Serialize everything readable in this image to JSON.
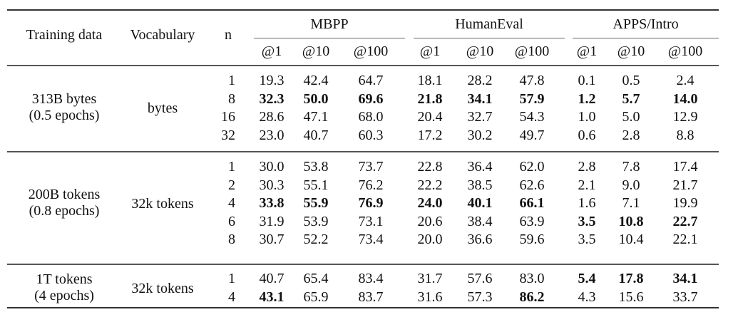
{
  "table": {
    "header": {
      "training_data": "Training data",
      "vocabulary": "Vocabulary",
      "n": "n",
      "benchmarks": [
        "MBPP",
        "HumanEval",
        "APPS/Intro"
      ],
      "metrics": [
        "@1",
        "@10",
        "@100",
        "@1",
        "@10",
        "@100",
        "@1",
        "@10",
        "@100"
      ]
    },
    "groups": [
      {
        "training_data_line1": "313B bytes",
        "training_data_line2": "(0.5 epochs)",
        "vocabulary": "bytes",
        "rows": [
          {
            "n": "1",
            "values": [
              "19.3",
              "42.4",
              "64.7",
              "18.1",
              "28.2",
              "47.8",
              "0.1",
              "0.5",
              "2.4"
            ],
            "bold": [
              false,
              false,
              false,
              false,
              false,
              false,
              false,
              false,
              false
            ]
          },
          {
            "n": "8",
            "values": [
              "32.3",
              "50.0",
              "69.6",
              "21.8",
              "34.1",
              "57.9",
              "1.2",
              "5.7",
              "14.0"
            ],
            "bold": [
              true,
              true,
              true,
              true,
              true,
              true,
              true,
              true,
              true
            ]
          },
          {
            "n": "16",
            "values": [
              "28.6",
              "47.1",
              "68.0",
              "20.4",
              "32.7",
              "54.3",
              "1.0",
              "5.0",
              "12.9"
            ],
            "bold": [
              false,
              false,
              false,
              false,
              false,
              false,
              false,
              false,
              false
            ]
          },
          {
            "n": "32",
            "values": [
              "23.0",
              "40.7",
              "60.3",
              "17.2",
              "30.2",
              "49.7",
              "0.6",
              "2.8",
              "8.8"
            ],
            "bold": [
              false,
              false,
              false,
              false,
              false,
              false,
              false,
              false,
              false
            ]
          }
        ]
      },
      {
        "training_data_line1": "200B tokens",
        "training_data_line2": "(0.8 epochs)",
        "vocabulary": "32k tokens",
        "rows": [
          {
            "n": "1",
            "values": [
              "30.0",
              "53.8",
              "73.7",
              "22.8",
              "36.4",
              "62.0",
              "2.8",
              "7.8",
              "17.4"
            ],
            "bold": [
              false,
              false,
              false,
              false,
              false,
              false,
              false,
              false,
              false
            ]
          },
          {
            "n": "2",
            "values": [
              "30.3",
              "55.1",
              "76.2",
              "22.2",
              "38.5",
              "62.6",
              "2.1",
              "9.0",
              "21.7"
            ],
            "bold": [
              false,
              false,
              false,
              false,
              false,
              false,
              false,
              false,
              false
            ]
          },
          {
            "n": "4",
            "values": [
              "33.8",
              "55.9",
              "76.9",
              "24.0",
              "40.1",
              "66.1",
              "1.6",
              "7.1",
              "19.9"
            ],
            "bold": [
              true,
              true,
              true,
              true,
              true,
              true,
              false,
              false,
              false
            ]
          },
          {
            "n": "6",
            "values": [
              "31.9",
              "53.9",
              "73.1",
              "20.6",
              "38.4",
              "63.9",
              "3.5",
              "10.8",
              "22.7"
            ],
            "bold": [
              false,
              false,
              false,
              false,
              false,
              false,
              true,
              true,
              true
            ]
          },
          {
            "n": "8",
            "values": [
              "30.7",
              "52.2",
              "73.4",
              "20.0",
              "36.6",
              "59.6",
              "3.5",
              "10.4",
              "22.1"
            ],
            "bold": [
              false,
              false,
              false,
              false,
              false,
              false,
              false,
              false,
              false
            ]
          }
        ]
      },
      {
        "training_data_line1": "1T tokens",
        "training_data_line2": "(4 epochs)",
        "vocabulary": "32k tokens",
        "rows": [
          {
            "n": "1",
            "values": [
              "40.7",
              "65.4",
              "83.4",
              "31.7",
              "57.6",
              "83.0",
              "5.4",
              "17.8",
              "34.1"
            ],
            "bold": [
              false,
              false,
              false,
              false,
              false,
              false,
              true,
              true,
              true
            ]
          },
          {
            "n": "4",
            "values": [
              "43.1",
              "65.9",
              "83.7",
              "31.6",
              "57.3",
              "86.2",
              "4.3",
              "15.6",
              "33.7"
            ],
            "bold": [
              true,
              false,
              false,
              false,
              false,
              true,
              false,
              false,
              false
            ]
          }
        ]
      }
    ]
  }
}
